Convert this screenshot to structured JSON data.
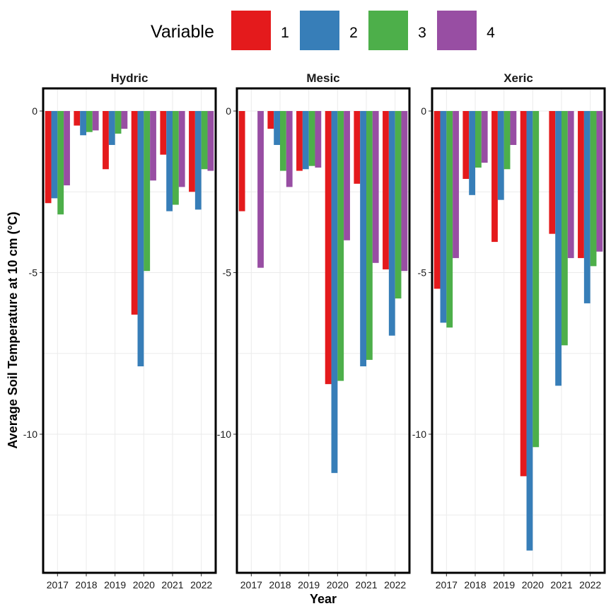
{
  "chart_data": {
    "type": "bar",
    "layout": "faceted grouped bar",
    "xlabel": "Year",
    "ylabel": "Average Soil Temperature at 10 cm (°C)",
    "ylim": [
      -14.4,
      0.7
    ],
    "yticks": [
      0,
      -5,
      -10
    ],
    "ytick_labels": [
      "0",
      "-5",
      "-10"
    ],
    "grid": true,
    "legend": {
      "title": "Variable",
      "position": "top",
      "entries": [
        {
          "label": "1",
          "color": "#e41a1c"
        },
        {
          "label": "2",
          "color": "#377eb8"
        },
        {
          "label": "3",
          "color": "#4daf4a"
        },
        {
          "label": "4",
          "color": "#984ea3"
        }
      ]
    },
    "categories": [
      "2017",
      "2018",
      "2019",
      "2020",
      "2021",
      "2022"
    ],
    "facets": [
      {
        "title": "Hydric",
        "series": [
          {
            "name": "1",
            "values": [
              -2.85,
              -0.45,
              -1.8,
              -6.3,
              -1.35,
              -2.5
            ]
          },
          {
            "name": "2",
            "values": [
              -2.7,
              -0.75,
              -1.05,
              -7.9,
              -3.1,
              -3.05
            ]
          },
          {
            "name": "3",
            "values": [
              -3.2,
              -0.65,
              -0.7,
              -4.95,
              -2.9,
              -1.8
            ]
          },
          {
            "name": "4",
            "values": [
              -2.3,
              -0.6,
              -0.55,
              -2.15,
              -2.35,
              -1.85
            ]
          }
        ]
      },
      {
        "title": "Mesic",
        "series": [
          {
            "name": "1",
            "values": [
              -3.1,
              -0.55,
              -1.85,
              -8.45,
              -2.25,
              -4.9
            ]
          },
          {
            "name": "2",
            "values": [
              null,
              -1.05,
              -1.8,
              -11.2,
              -7.9,
              -6.95
            ]
          },
          {
            "name": "3",
            "values": [
              null,
              -1.85,
              -1.7,
              -8.35,
              -7.7,
              -5.8
            ]
          },
          {
            "name": "4",
            "values": [
              -4.85,
              -2.35,
              -1.75,
              -4.0,
              -4.7,
              -4.95
            ]
          }
        ]
      },
      {
        "title": "Xeric",
        "series": [
          {
            "name": "1",
            "values": [
              -5.5,
              -2.1,
              -4.05,
              -11.3,
              -3.8,
              -4.55
            ]
          },
          {
            "name": "2",
            "values": [
              -6.55,
              -2.6,
              -2.75,
              -13.6,
              -8.5,
              -5.95
            ]
          },
          {
            "name": "3",
            "values": [
              -6.7,
              -1.75,
              -1.8,
              -10.4,
              -7.25,
              -4.8
            ]
          },
          {
            "name": "4",
            "values": [
              -4.55,
              -1.6,
              -1.05,
              null,
              -4.55,
              -4.35
            ]
          }
        ]
      }
    ]
  }
}
